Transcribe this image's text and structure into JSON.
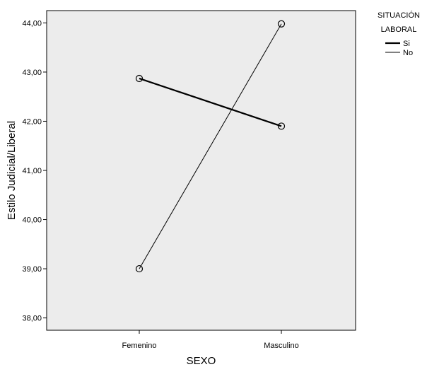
{
  "chart_data": {
    "type": "line",
    "title": "",
    "xlabel": "SEXO",
    "ylabel": "Estilo Judicial/Liberal",
    "categories": [
      "Femenino",
      "Masculino"
    ],
    "ylim": [
      37.75,
      44.25
    ],
    "yticks": [
      "38,00",
      "39,00",
      "40,00",
      "41,00",
      "42,00",
      "43,00",
      "44,00"
    ],
    "ytick_values": [
      38,
      39,
      40,
      41,
      42,
      43,
      44
    ],
    "grid": false,
    "legend_position": "right",
    "legend_title": "SITUACIÓN LABORAL",
    "legend_title_lines": [
      "SITUACIÓN",
      "LABORAL"
    ],
    "series": [
      {
        "name": "Si",
        "values": [
          42.87,
          41.9
        ],
        "line": "thick",
        "color": "#000000"
      },
      {
        "name": "No",
        "values": [
          39.0,
          43.98
        ],
        "line": "thin",
        "color": "#000000"
      }
    ],
    "plot_background": "#ececec"
  }
}
